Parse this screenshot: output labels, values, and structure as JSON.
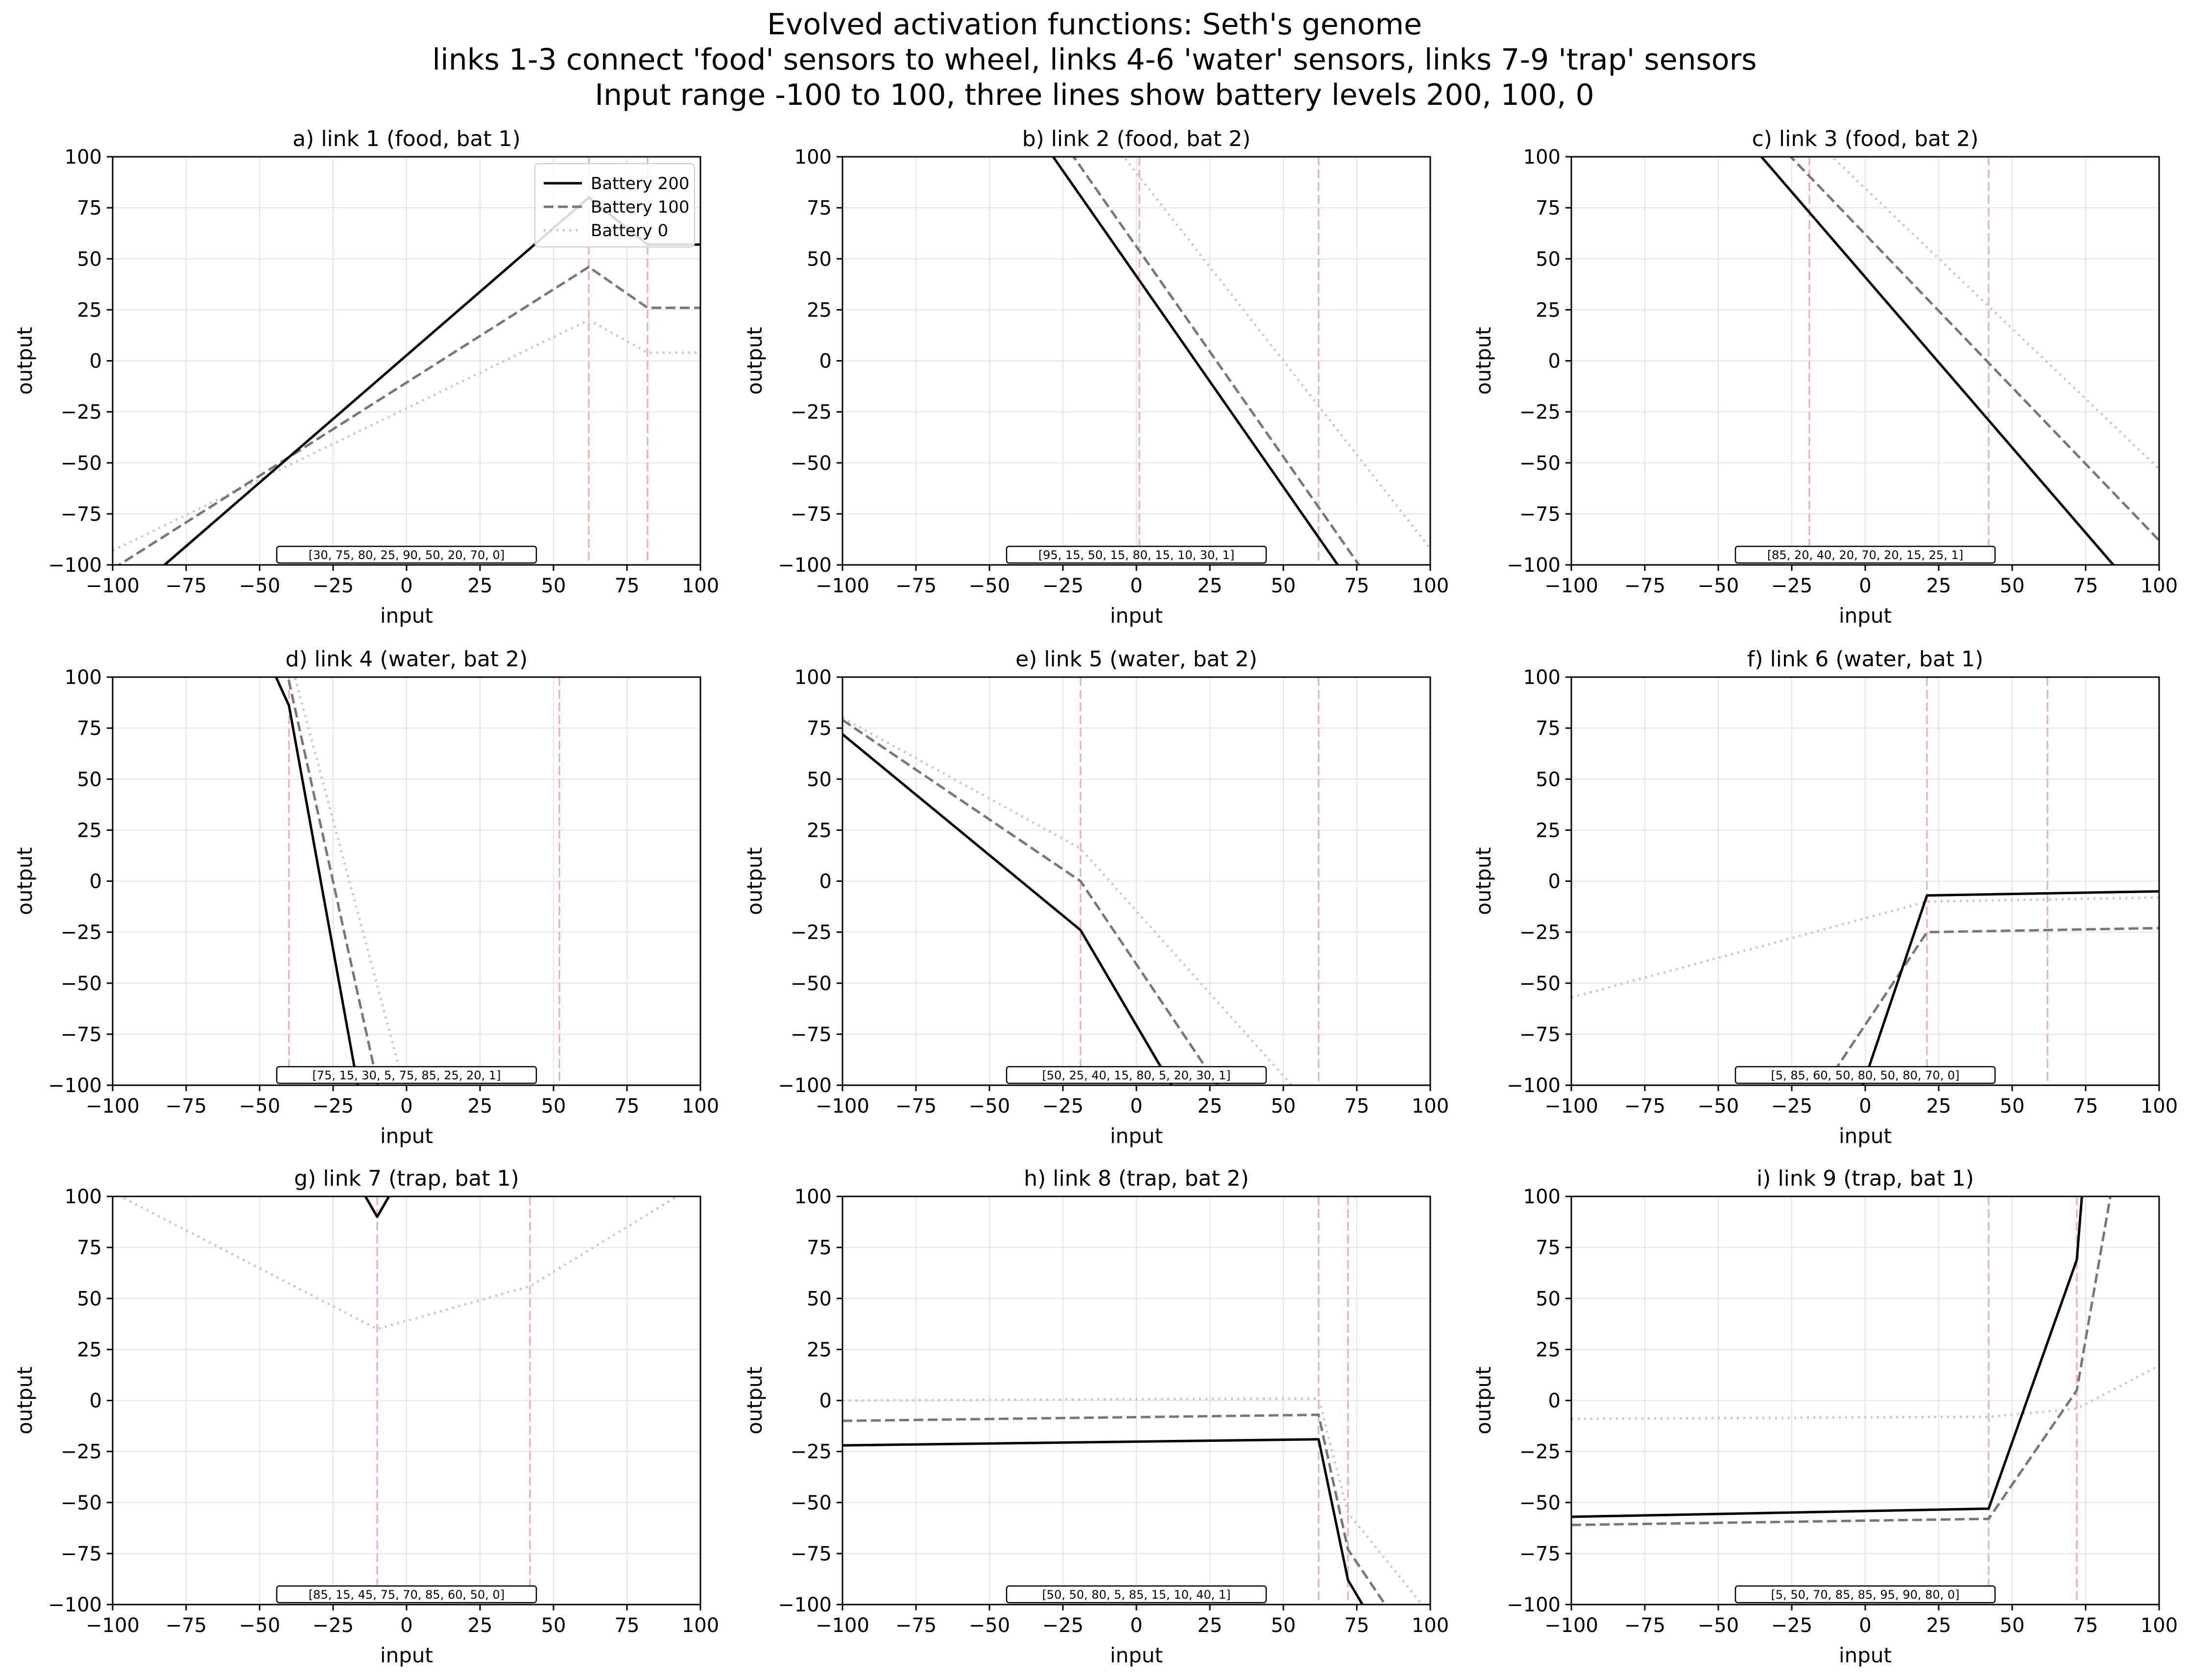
{
  "figure": {
    "title_lines": [
      "Evolved activation functions: Seth's genome",
      "links 1-3 connect 'food' sensors to wheel, links 4-6 'water' sensors, links 7-9 'trap' sensors",
      "Input range -100 to 100, three lines show battery levels 200, 100, 0"
    ]
  },
  "legend": {
    "location": "upper right of panel a",
    "entries": [
      {
        "label": "Battery 200",
        "color": "#000000",
        "style": "solid"
      },
      {
        "label": "Battery 100",
        "color": "#777777",
        "style": "dashed"
      },
      {
        "label": "Battery 0",
        "color": "#c8c8c8",
        "style": "dotted"
      }
    ]
  },
  "colors": {
    "threshold_line": "#f4a6a0",
    "grid": "#e3e3e3",
    "axes": "#000000"
  },
  "chart_data": [
    {
      "type": "line",
      "title": "a) link 1 (food, bat 1)",
      "xlabel": "input",
      "ylabel": "output",
      "xlim": [
        -100,
        100
      ],
      "ylim": [
        -100,
        100
      ],
      "xticks": [
        -100,
        -75,
        -50,
        -25,
        0,
        25,
        50,
        75,
        100
      ],
      "yticks": [
        -100,
        -75,
        -50,
        -25,
        0,
        25,
        50,
        75,
        100
      ],
      "thresholds": [
        62,
        82
      ],
      "genome": "[30, 75, 80, 25, 90, 50, 20, 70, 0]",
      "series": [
        {
          "name": "Battery 200",
          "x": [
            -100,
            62,
            82,
            100
          ],
          "y": [
            -122,
            80,
            57,
            57
          ]
        },
        {
          "name": "Battery 100",
          "x": [
            -100,
            62,
            82,
            100
          ],
          "y": [
            -102,
            46,
            26,
            26
          ]
        },
        {
          "name": "Battery 0",
          "x": [
            -100,
            62,
            82,
            100
          ],
          "y": [
            -93,
            20,
            4,
            4
          ]
        }
      ]
    },
    {
      "type": "line",
      "title": "b) link 2 (food, bat 2)",
      "xlabel": "input",
      "ylabel": "output",
      "xlim": [
        -100,
        100
      ],
      "ylim": [
        -100,
        100
      ],
      "xticks": [
        -100,
        -75,
        -50,
        -25,
        0,
        25,
        50,
        75,
        100
      ],
      "yticks": [
        -100,
        -75,
        -50,
        -25,
        0,
        25,
        50,
        75,
        100
      ],
      "thresholds": [
        1,
        62
      ],
      "genome": "[95, 15, 50, 15, 80, 15, 10, 30, 1]",
      "series": [
        {
          "name": "Battery 200",
          "x": [
            -100,
            100
          ],
          "y": [
            248,
            -165
          ]
        },
        {
          "name": "Battery 100",
          "x": [
            -100,
            100
          ],
          "y": [
            262,
            -150
          ]
        },
        {
          "name": "Battery 0",
          "x": [
            -100,
            100
          ],
          "y": [
            276,
            -92
          ]
        }
      ]
    },
    {
      "type": "line",
      "title": "c) link 3 (food, bat 2)",
      "xlabel": "input",
      "ylabel": "output",
      "xlim": [
        -100,
        100
      ],
      "ylim": [
        -100,
        100
      ],
      "xticks": [
        -100,
        -75,
        -50,
        -25,
        0,
        25,
        50,
        75,
        100
      ],
      "yticks": [
        -100,
        -75,
        -50,
        -25,
        0,
        25,
        50,
        75,
        100
      ],
      "thresholds": [
        -19,
        42
      ],
      "genome": "[85, 20, 40, 20, 70, 20, 15, 25, 1]",
      "series": [
        {
          "name": "Battery 200",
          "x": [
            -100,
            100
          ],
          "y": [
            208,
            -126
          ]
        },
        {
          "name": "Battery 100",
          "x": [
            -100,
            100
          ],
          "y": [
            212,
            -88
          ]
        },
        {
          "name": "Battery 0",
          "x": [
            -100,
            100
          ],
          "y": [
            222,
            -53
          ]
        }
      ]
    },
    {
      "type": "line",
      "title": "d) link 4 (water, bat 2)",
      "xlabel": "input",
      "ylabel": "output",
      "xlim": [
        -100,
        100
      ],
      "ylim": [
        -100,
        100
      ],
      "xticks": [
        -100,
        -75,
        -50,
        -25,
        0,
        25,
        50,
        75,
        100
      ],
      "yticks": [
        -100,
        -75,
        -50,
        -25,
        0,
        25,
        50,
        75,
        100
      ],
      "thresholds": [
        -40,
        52
      ],
      "genome": "[75, 15, 30, 5, 75, 85, 25, 20, 1]",
      "series": [
        {
          "name": "Battery 200",
          "x": [
            -46,
            -40,
            -16
          ],
          "y": [
            105,
            86,
            -105
          ]
        },
        {
          "name": "Battery 100",
          "x": [
            -42,
            -40,
            -9
          ],
          "y": [
            105,
            98,
            -105
          ]
        },
        {
          "name": "Battery 0",
          "x": [
            -40,
            -38,
            0
          ],
          "y": [
            105,
            100,
            -105
          ]
        }
      ]
    },
    {
      "type": "line",
      "title": "e) link 5 (water, bat 2)",
      "xlabel": "input",
      "ylabel": "output",
      "xlim": [
        -100,
        100
      ],
      "ylim": [
        -100,
        100
      ],
      "xticks": [
        -100,
        -75,
        -50,
        -25,
        0,
        25,
        50,
        75,
        100
      ],
      "yticks": [
        -100,
        -75,
        -50,
        -25,
        0,
        25,
        50,
        75,
        100
      ],
      "thresholds": [
        -19,
        62
      ],
      "genome": "[50, 25, 40, 15, 80, 5, 20, 30, 1]",
      "series": [
        {
          "name": "Battery 200",
          "x": [
            -100,
            -19,
            14
          ],
          "y": [
            72,
            -24,
            -105
          ]
        },
        {
          "name": "Battery 100",
          "x": [
            -100,
            -19,
            30
          ],
          "y": [
            79,
            0,
            -105
          ]
        },
        {
          "name": "Battery 0",
          "x": [
            -100,
            -19,
            56
          ],
          "y": [
            80,
            16,
            -105
          ]
        }
      ]
    },
    {
      "type": "line",
      "title": "f) link 6 (water, bat 1)",
      "xlabel": "input",
      "ylabel": "output",
      "xlim": [
        -100,
        100
      ],
      "ylim": [
        -100,
        100
      ],
      "xticks": [
        -100,
        -75,
        -50,
        -25,
        0,
        25,
        50,
        75,
        100
      ],
      "yticks": [
        -100,
        -75,
        -50,
        -25,
        0,
        25,
        50,
        75,
        100
      ],
      "thresholds": [
        21,
        62
      ],
      "genome": "[5, 85, 60, 50, 80, 50, 80, 70, 0]",
      "series": [
        {
          "name": "Battery 200",
          "x": [
            -2,
            21,
            100
          ],
          "y": [
            -105,
            -7,
            -5
          ]
        },
        {
          "name": "Battery 100",
          "x": [
            -16,
            21,
            100
          ],
          "y": [
            -105,
            -25,
            -23
          ]
        },
        {
          "name": "Battery 0",
          "x": [
            -100,
            21,
            100
          ],
          "y": [
            -57,
            -10,
            -8
          ]
        }
      ]
    },
    {
      "type": "line",
      "title": "g) link 7 (trap, bat 1)",
      "xlabel": "input",
      "ylabel": "output",
      "xlim": [
        -100,
        100
      ],
      "ylim": [
        -100,
        100
      ],
      "xticks": [
        -100,
        -75,
        -50,
        -25,
        0,
        25,
        50,
        75,
        100
      ],
      "yticks": [
        -100,
        -75,
        -50,
        -25,
        0,
        25,
        50,
        75,
        100
      ],
      "thresholds": [
        -10,
        42
      ],
      "genome": "[85, 15, 45, 75, 70, 85, 60, 50, 0]",
      "series": [
        {
          "name": "Battery 200",
          "x": [
            -16,
            -10,
            -4
          ],
          "y": [
            105,
            90,
            105
          ]
        },
        {
          "name": "Battery 100",
          "x": [
            -16,
            -10,
            -4
          ],
          "y": [
            105,
            90,
            105
          ]
        },
        {
          "name": "Battery 0",
          "x": [
            -100,
            -10,
            42,
            100
          ],
          "y": [
            102,
            35,
            56,
            107
          ]
        }
      ]
    },
    {
      "type": "line",
      "title": "h) link 8 (trap, bat 2)",
      "xlabel": "input",
      "ylabel": "output",
      "xlim": [
        -100,
        100
      ],
      "ylim": [
        -100,
        100
      ],
      "xticks": [
        -100,
        -75,
        -50,
        -25,
        0,
        25,
        50,
        75,
        100
      ],
      "yticks": [
        -100,
        -75,
        -50,
        -25,
        0,
        25,
        50,
        75,
        100
      ],
      "thresholds": [
        62,
        72
      ],
      "genome": "[50, 50, 80, 5, 85, 15, 10, 40, 1]",
      "series": [
        {
          "name": "Battery 200",
          "x": [
            -100,
            62,
            72,
            79
          ],
          "y": [
            -22,
            -19,
            -88,
            -105
          ]
        },
        {
          "name": "Battery 100",
          "x": [
            -100,
            62,
            72,
            87
          ],
          "y": [
            -10,
            -7,
            -73,
            -105
          ]
        },
        {
          "name": "Battery 0",
          "x": [
            -100,
            62,
            72,
            100
          ],
          "y": [
            0,
            1,
            -55,
            -105
          ]
        }
      ]
    },
    {
      "type": "line",
      "title": "i) link 9 (trap, bat 1)",
      "xlabel": "input",
      "ylabel": "output",
      "xlim": [
        -100,
        100
      ],
      "ylim": [
        -100,
        100
      ],
      "xticks": [
        -100,
        -75,
        -50,
        -25,
        0,
        25,
        50,
        75,
        100
      ],
      "yticks": [
        -100,
        -75,
        -50,
        -25,
        0,
        25,
        50,
        75,
        100
      ],
      "thresholds": [
        42,
        72
      ],
      "genome": "[5, 50, 70, 85, 85, 95, 90, 80, 0]",
      "series": [
        {
          "name": "Battery 200",
          "x": [
            -100,
            42,
            72,
            74
          ],
          "y": [
            -57,
            -53,
            69,
            105
          ]
        },
        {
          "name": "Battery 100",
          "x": [
            -100,
            42,
            72,
            84
          ],
          "y": [
            -61,
            -58,
            5,
            105
          ]
        },
        {
          "name": "Battery 0",
          "x": [
            -100,
            42,
            72,
            100
          ],
          "y": [
            -9,
            -8,
            -4,
            17
          ]
        }
      ]
    }
  ]
}
